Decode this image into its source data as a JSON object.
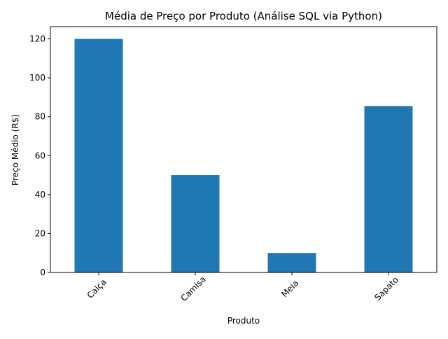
{
  "chart_data": {
    "type": "bar",
    "title": "Média de Preço por Produto (Análise SQL via Python)",
    "xlabel": "Produto",
    "ylabel": "Preço Médio (R$)",
    "categories": [
      "Calça",
      "Camisa",
      "Meia",
      "Sapato"
    ],
    "values": [
      120,
      50,
      10,
      85.5
    ],
    "ylim": [
      0,
      126.3
    ],
    "yticks": [
      0,
      20,
      40,
      60,
      80,
      100,
      120
    ],
    "grid": false,
    "legend": "none",
    "bar_color": "#1f77b4"
  }
}
